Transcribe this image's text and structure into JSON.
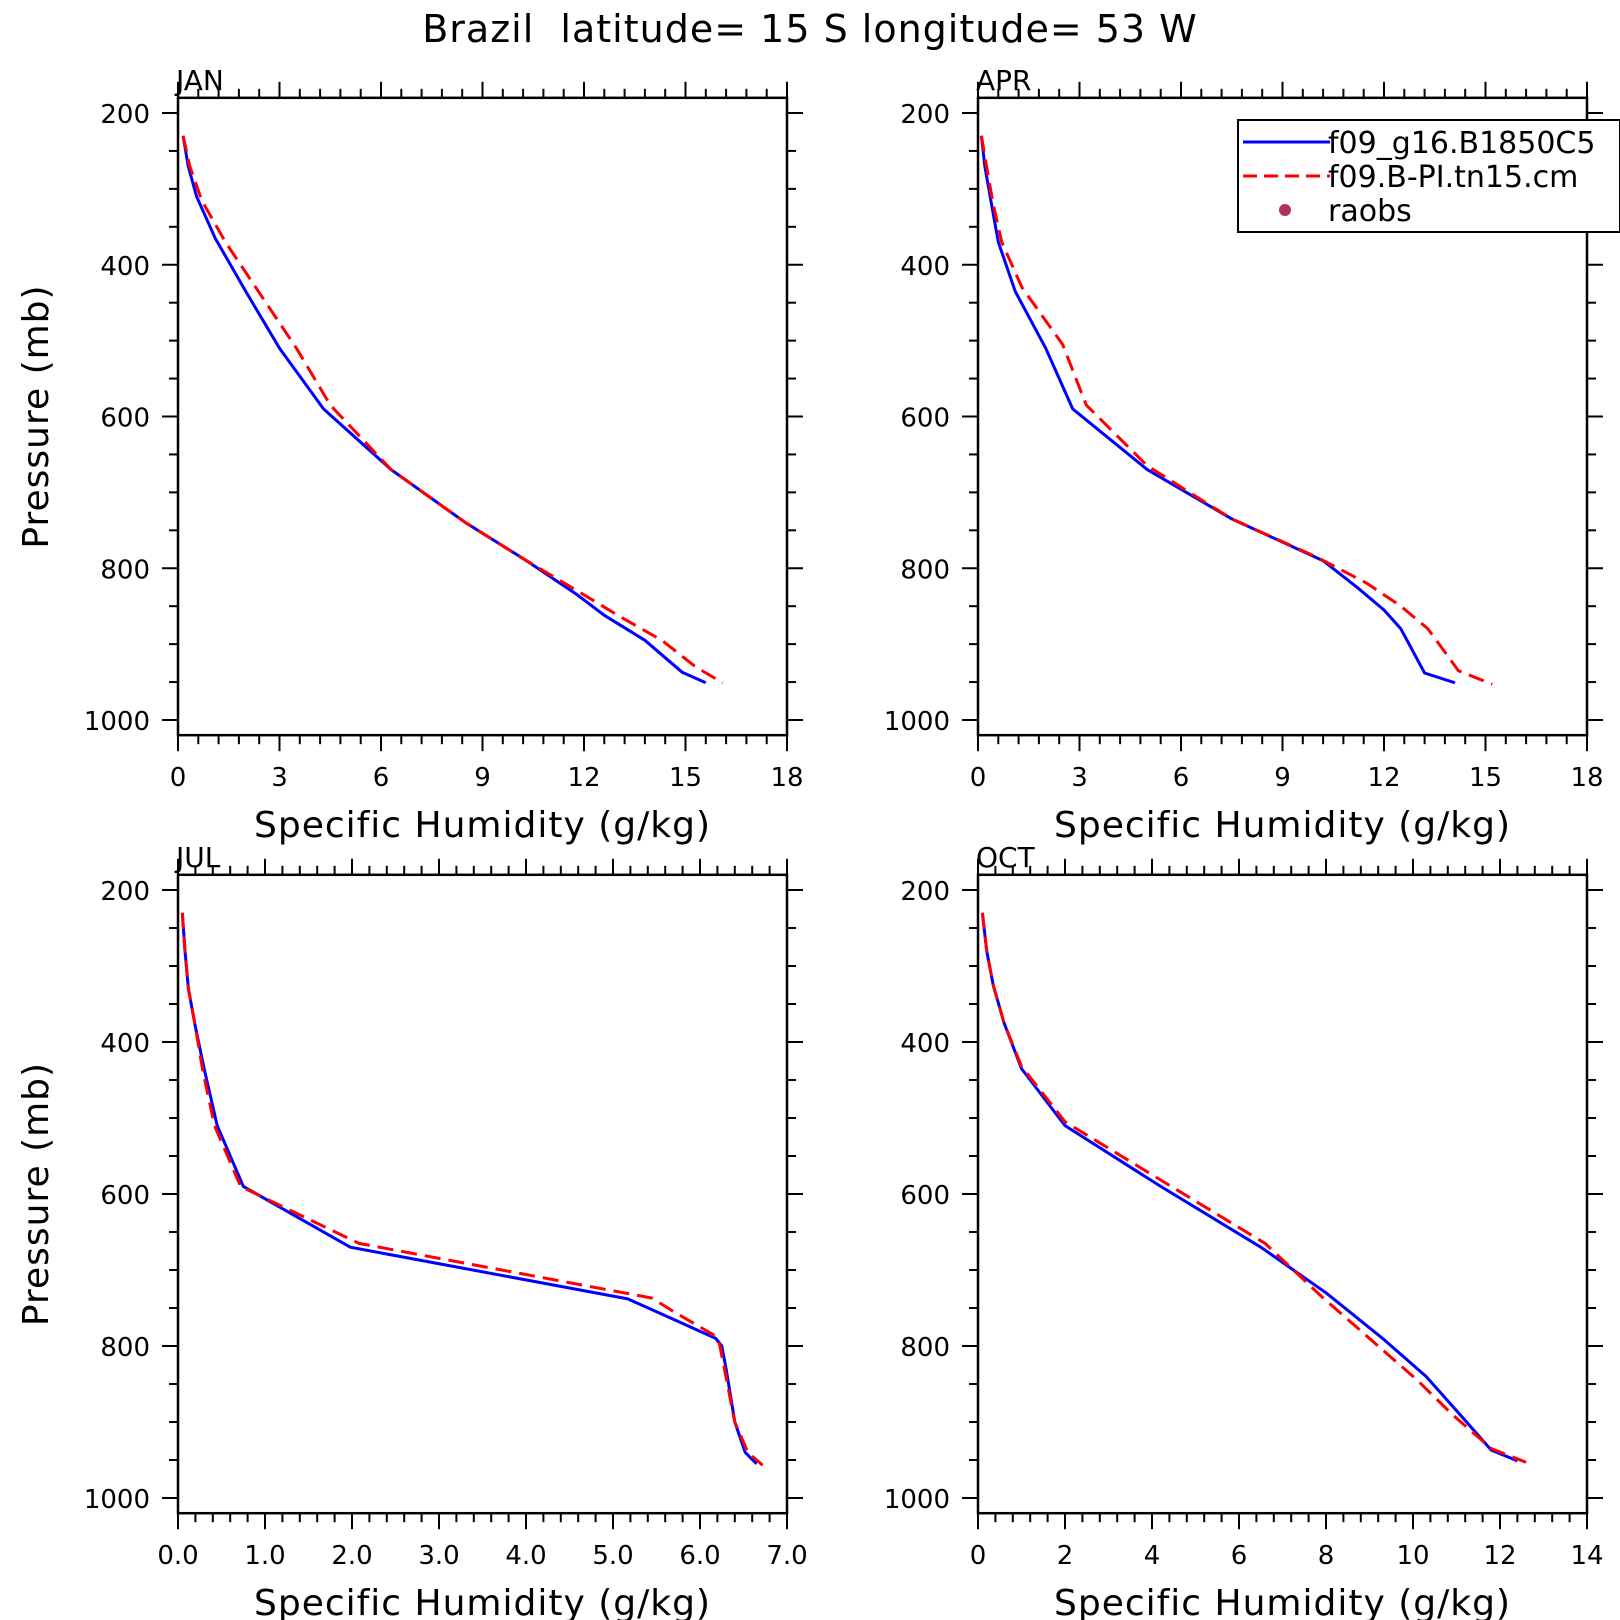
{
  "page_title": "Brazil  latitude= 15 S longitude= 53 W",
  "legend": {
    "entries": [
      {
        "label": "f09_g16.B1850C5",
        "color": "#0000ff",
        "style": "solid"
      },
      {
        "label": "f09.B-PI.tn15.cm",
        "color": "#ff0000",
        "style": "dashed"
      },
      {
        "label": "raobs",
        "color": "#b03060",
        "style": "dot"
      }
    ]
  },
  "chart_data": [
    {
      "type": "line",
      "title": "JAN",
      "xlabel": "Specific Humidity (g/kg)",
      "ylabel": "Pressure (mb)",
      "xlim": [
        0,
        18
      ],
      "ylim": [
        1000,
        200
      ],
      "xticks": [
        0,
        3,
        6,
        9,
        12,
        15,
        18
      ],
      "xtick_labels": [
        "0",
        "3",
        "6",
        "9",
        "12",
        "15",
        "18"
      ],
      "yticks": [
        200,
        400,
        600,
        800,
        1000
      ],
      "ytick_labels": [
        "200",
        "400",
        "600",
        "800",
        "1000"
      ],
      "series": [
        {
          "name": "f09_g16.B1850C5",
          "x": [
            0.15,
            0.3,
            0.55,
            1.1,
            2.0,
            3.0,
            4.3,
            6.3,
            8.5,
            10.3,
            11.8,
            12.6,
            13.8,
            14.9,
            15.6
          ],
          "y": [
            230,
            270,
            310,
            365,
            435,
            510,
            590,
            670,
            740,
            790,
            835,
            862,
            895,
            937,
            951
          ]
        },
        {
          "name": "f09.B-PI.tn15.cm",
          "x": [
            0.15,
            0.35,
            0.7,
            1.4,
            2.3,
            3.5,
            4.5,
            6.3,
            8.5,
            10.3,
            12.0,
            13.0,
            14.3,
            15.3,
            16.1
          ],
          "y": [
            230,
            270,
            315,
            370,
            430,
            510,
            585,
            670,
            740,
            790,
            835,
            862,
            895,
            930,
            951
          ]
        }
      ]
    },
    {
      "type": "line",
      "title": "APR",
      "xlabel": "Specific Humidity (g/kg)",
      "ylabel": "",
      "xlim": [
        0,
        18
      ],
      "ylim": [
        1000,
        200
      ],
      "xticks": [
        0,
        3,
        6,
        9,
        12,
        15,
        18
      ],
      "xtick_labels": [
        "0",
        "3",
        "6",
        "9",
        "12",
        "15",
        "18"
      ],
      "yticks": [
        200,
        400,
        600,
        800,
        1000
      ],
      "ytick_labels": [
        "200",
        "400",
        "600",
        "800",
        "1000"
      ],
      "series": [
        {
          "name": "f09_g16.B1850C5",
          "x": [
            0.1,
            0.2,
            0.4,
            0.6,
            1.1,
            2.0,
            2.8,
            5.0,
            7.5,
            10.2,
            11.2,
            12.0,
            12.5,
            13.2,
            14.1
          ],
          "y": [
            230,
            270,
            320,
            370,
            435,
            510,
            590,
            670,
            735,
            790,
            825,
            855,
            880,
            938,
            951
          ]
        },
        {
          "name": "f09.B-PI.tn15.cm",
          "x": [
            0.1,
            0.25,
            0.45,
            0.7,
            1.3,
            2.5,
            3.2,
            5.0,
            7.5,
            10.0,
            11.5,
            12.5,
            13.3,
            14.2,
            15.2
          ],
          "y": [
            230,
            270,
            320,
            370,
            430,
            505,
            585,
            665,
            735,
            785,
            820,
            850,
            880,
            935,
            953
          ]
        }
      ]
    },
    {
      "type": "line",
      "title": "JUL",
      "xlabel": "Specific Humidity (g/kg)",
      "ylabel": "Pressure (mb)",
      "xlim": [
        0,
        7
      ],
      "ylim": [
        1000,
        200
      ],
      "xticks": [
        0,
        1,
        2,
        3,
        4,
        5,
        6,
        7
      ],
      "xtick_labels": [
        "0.0",
        "1.0",
        "2.0",
        "3.0",
        "4.0",
        "5.0",
        "6.0",
        "7.0"
      ],
      "yticks": [
        200,
        400,
        600,
        800,
        1000
      ],
      "ytick_labels": [
        "200",
        "400",
        "600",
        "800",
        "1000"
      ],
      "series": [
        {
          "name": "f09_g16.B1850C5",
          "x": [
            0.05,
            0.08,
            0.12,
            0.2,
            0.3,
            0.45,
            0.75,
            1.98,
            5.17,
            5.6,
            6.18,
            6.25,
            6.3,
            6.4,
            6.52,
            6.65
          ],
          "y": [
            230,
            280,
            330,
            380,
            435,
            510,
            590,
            670,
            738,
            760,
            790,
            800,
            830,
            900,
            940,
            955
          ]
        },
        {
          "name": "f09.B-PI.tn15.cm",
          "x": [
            0.05,
            0.08,
            0.12,
            0.2,
            0.28,
            0.42,
            0.72,
            2.08,
            5.45,
            5.7,
            6.15,
            6.22,
            6.28,
            6.4,
            6.55,
            6.72
          ],
          "y": [
            230,
            280,
            330,
            380,
            435,
            510,
            590,
            665,
            737,
            755,
            785,
            795,
            830,
            900,
            940,
            957
          ]
        }
      ]
    },
    {
      "type": "line",
      "title": "OCT",
      "xlabel": "Specific Humidity (g/kg)",
      "ylabel": "",
      "xlim": [
        0,
        14
      ],
      "ylim": [
        1000,
        200
      ],
      "xticks": [
        0,
        2,
        4,
        6,
        8,
        10,
        12,
        14
      ],
      "xtick_labels": [
        "0",
        "2",
        "4",
        "6",
        "8",
        "10",
        "12",
        "14"
      ],
      "yticks": [
        200,
        400,
        600,
        800,
        1000
      ],
      "ytick_labels": [
        "200",
        "400",
        "600",
        "800",
        "1000"
      ],
      "series": [
        {
          "name": "f09_g16.B1850C5",
          "x": [
            0.1,
            0.2,
            0.35,
            0.6,
            1.0,
            2.0,
            4.2,
            6.5,
            8.0,
            9.3,
            10.3,
            11.0,
            11.8,
            12.4
          ],
          "y": [
            230,
            280,
            325,
            375,
            435,
            510,
            590,
            670,
            730,
            790,
            840,
            885,
            937,
            951
          ]
        },
        {
          "name": "f09.B-PI.tn15.cm",
          "x": [
            0.1,
            0.2,
            0.35,
            0.6,
            1.0,
            2.0,
            4.3,
            6.6,
            7.9,
            9.1,
            10.1,
            10.9,
            11.8,
            12.6
          ],
          "y": [
            230,
            280,
            325,
            375,
            432,
            505,
            585,
            665,
            735,
            795,
            845,
            890,
            935,
            953
          ]
        }
      ]
    }
  ]
}
